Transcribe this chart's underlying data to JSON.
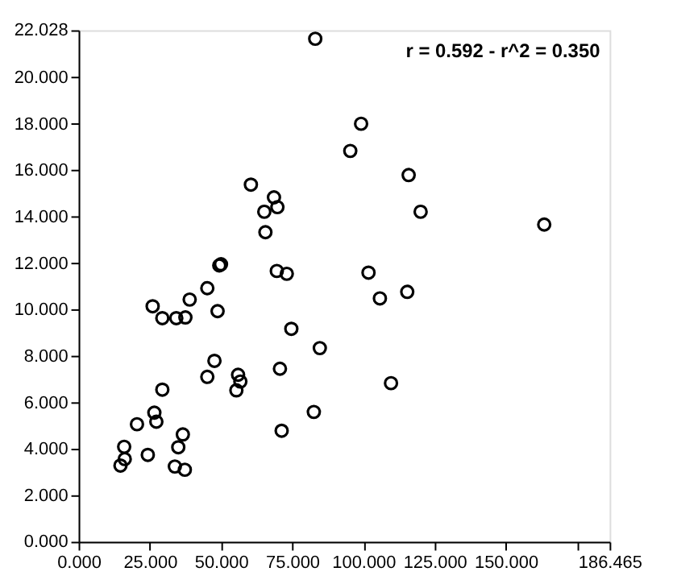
{
  "chart_data": {
    "type": "scatter",
    "x": [
      83.1,
      95.4,
      60.5,
      68.6,
      69.8,
      65.2,
      65.6,
      49.4,
      50.0,
      69.6,
      73.1,
      45.2,
      39.0,
      26.0,
      29.4,
      34.3,
      37.5,
      48.8,
      74.7,
      84.7,
      47.7,
      45.2,
      56.0,
      56.8,
      55.4,
      70.7,
      29.4,
      26.6,
      27.3,
      20.5,
      82.6,
      71.3,
      36.6,
      35.0,
      16.0,
      24.3,
      16.2,
      14.7,
      33.8,
      37.3,
      99.2,
      115.9,
      120.1,
      163.5,
      101.8,
      105.8,
      115.4,
      109.7
    ],
    "series": [
      {
        "color": "#000000",
        "values": [
          21.66,
          16.83,
          15.38,
          14.83,
          14.41,
          14.21,
          13.33,
          11.9,
          11.95,
          11.66,
          11.54,
          10.92,
          10.43,
          10.14,
          9.63,
          9.63,
          9.66,
          9.93,
          9.17,
          8.34,
          7.79,
          7.1,
          7.19,
          6.9,
          6.52,
          7.45,
          6.55,
          5.56,
          5.17,
          5.06,
          5.59,
          4.78,
          4.62,
          4.07,
          4.09,
          3.74,
          3.56,
          3.28,
          3.24,
          3.1,
          18.0,
          15.79,
          14.21,
          13.66,
          11.59,
          10.48,
          10.76,
          6.83
        ]
      }
    ],
    "xlim": [
      0,
      186.465
    ],
    "xticks": [
      {
        "value": 0,
        "label": "0.000"
      },
      {
        "value": 25,
        "label": "25.000"
      },
      {
        "value": 50,
        "label": "50.000"
      },
      {
        "value": 75,
        "label": "75.000"
      },
      {
        "value": 100,
        "label": "100.000"
      },
      {
        "value": 125,
        "label": "125.000"
      },
      {
        "value": 150,
        "label": "150.000"
      },
      {
        "value": 175,
        "label": null
      },
      {
        "value": 186.465,
        "label": "186.465"
      }
    ],
    "ylim": [
      0,
      22.028
    ],
    "yticks": [
      {
        "value": 0,
        "label": "0.000"
      },
      {
        "value": 2,
        "label": "2.000"
      },
      {
        "value": 4,
        "label": "4.000"
      },
      {
        "value": 6,
        "label": "6.000"
      },
      {
        "value": 8,
        "label": "8.000"
      },
      {
        "value": 10,
        "label": "10.000"
      },
      {
        "value": 12,
        "label": "12.000"
      },
      {
        "value": 14,
        "label": "14.000"
      },
      {
        "value": 16,
        "label": "16.000"
      },
      {
        "value": 18,
        "label": "18.000"
      },
      {
        "value": 20,
        "label": "20.000"
      },
      {
        "value": 22.028,
        "label": "22.028"
      }
    ],
    "annotations": [
      "r = 0.592 - r^2 = 0.350"
    ],
    "marker": "circle",
    "grid": false
  }
}
